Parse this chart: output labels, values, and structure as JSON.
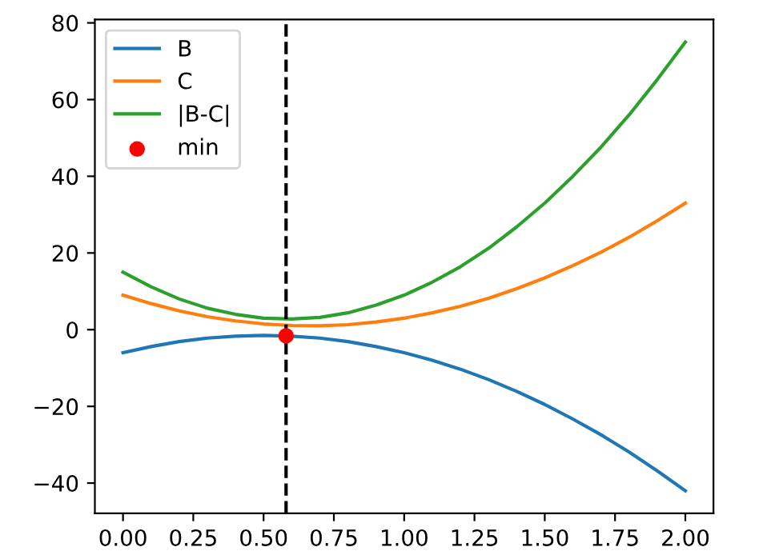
{
  "chart_data": {
    "type": "line",
    "x": [
      0,
      0.1,
      0.2,
      0.3,
      0.4,
      0.5,
      0.6,
      0.7,
      0.8,
      0.9,
      1.0,
      1.1,
      1.2,
      1.3,
      1.4,
      1.5,
      1.6,
      1.7,
      1.8,
      1.9,
      2.0
    ],
    "series": [
      {
        "name": "B",
        "color": "#1f77b4",
        "values": [
          -6,
          -4.4,
          -3.1,
          -2.2,
          -1.7,
          -1.5,
          -1.7,
          -2.2,
          -3.1,
          -4.4,
          -6,
          -8,
          -10.3,
          -13,
          -16.1,
          -19.5,
          -23.3,
          -27.4,
          -31.9,
          -36.8,
          -42
        ]
      },
      {
        "name": "C",
        "color": "#ff7f0e",
        "values": [
          9,
          6.8,
          4.9,
          3.4,
          2.3,
          1.5,
          1.1,
          1,
          1.3,
          2,
          3,
          4.4,
          6.1,
          8.2,
          10.7,
          13.5,
          16.7,
          20.2,
          24.1,
          28.4,
          33
        ]
      },
      {
        "name": "|B-C|",
        "color": "#2ca02c",
        "values": [
          15,
          11.2,
          8,
          5.6,
          4,
          3,
          2.8,
          3.2,
          4.4,
          6.4,
          9,
          12.4,
          16.4,
          21.2,
          26.8,
          33,
          40,
          47.6,
          56,
          65.2,
          75
        ]
      },
      {
        "name": "min",
        "type": "scatter",
        "color": "#ff0000",
        "marker": "circle",
        "x": [
          0.58
        ],
        "values": [
          -1.6
        ]
      }
    ],
    "ref_lines": [
      {
        "axis": "x",
        "value": 0.58,
        "color": "#000000",
        "line_style": "dashed"
      }
    ],
    "xlim": [
      -0.1,
      2.1
    ],
    "ylim": [
      -47.9,
      80.9
    ],
    "xticks": [
      {
        "value": 0,
        "label": "0.00"
      },
      {
        "value": 0.25,
        "label": "0.25"
      },
      {
        "value": 0.5,
        "label": "0.50"
      },
      {
        "value": 0.75,
        "label": "0.75"
      },
      {
        "value": 1,
        "label": "1.00"
      },
      {
        "value": 1.25,
        "label": "1.25"
      },
      {
        "value": 1.5,
        "label": "1.50"
      },
      {
        "value": 1.75,
        "label": "1.75"
      },
      {
        "value": 2,
        "label": "2.00"
      }
    ],
    "yticks": [
      {
        "value": -40,
        "label": "−40"
      },
      {
        "value": -20,
        "label": "−20"
      },
      0,
      20,
      40,
      60,
      80
    ],
    "legend": "top left"
  }
}
